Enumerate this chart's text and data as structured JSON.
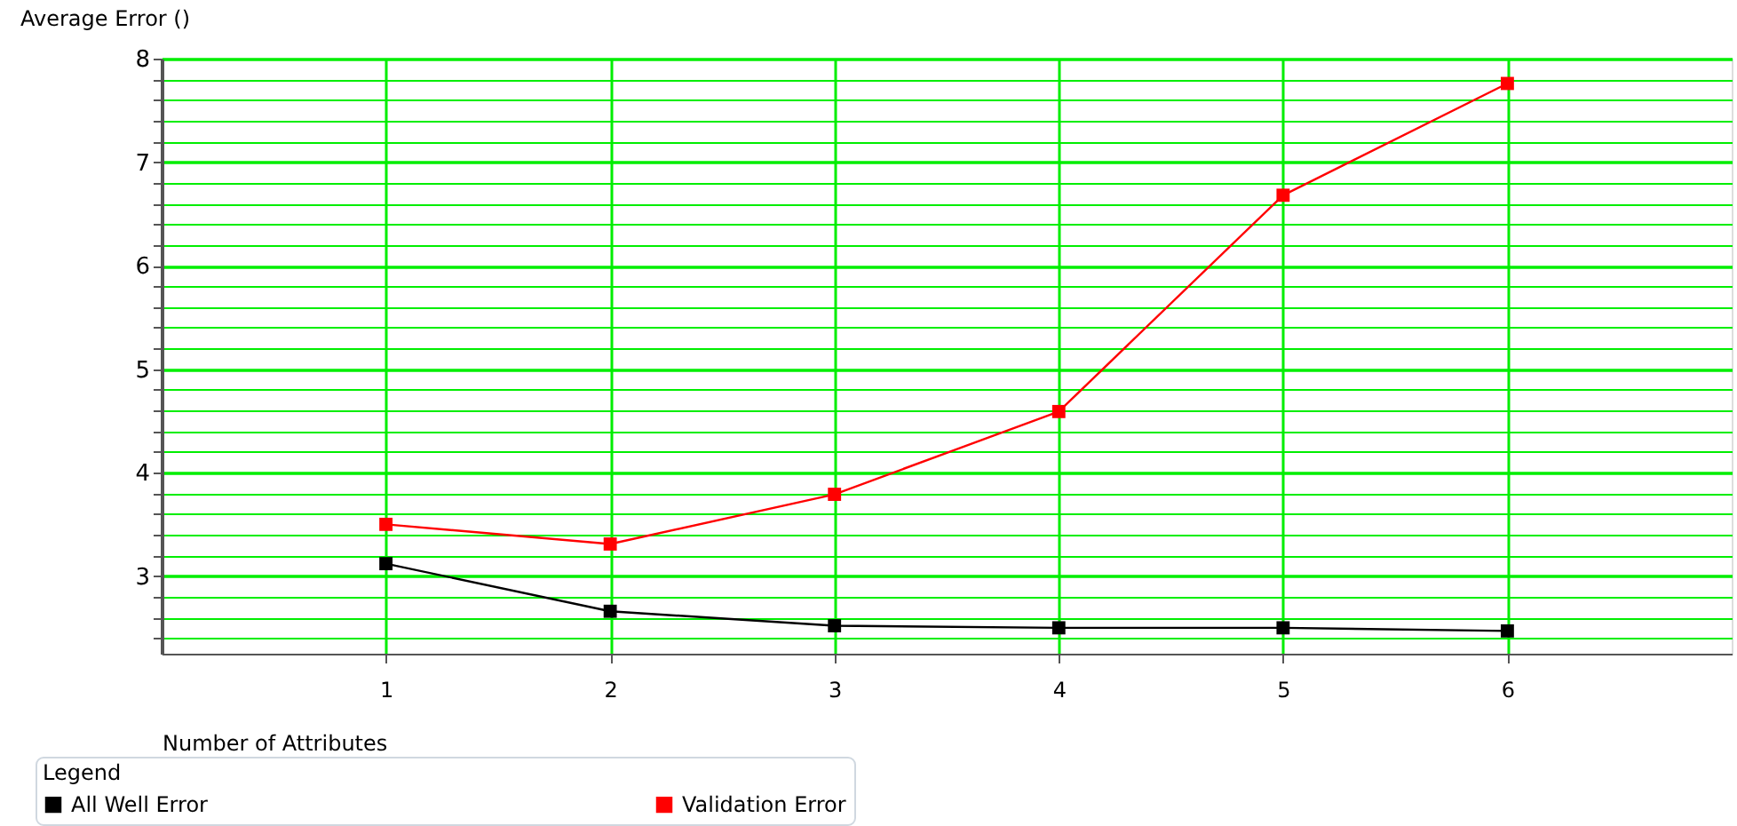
{
  "chart_data": {
    "type": "line",
    "xlabel": "Number of Attributes",
    "ylabel": "Average Error ()",
    "legend_title": "Legend",
    "x": [
      1,
      2,
      3,
      4,
      5,
      6
    ],
    "series": [
      {
        "name": "All Well Error",
        "color": "#000000",
        "values": [
          3.12,
          2.66,
          2.52,
          2.5,
          2.5,
          2.47
        ]
      },
      {
        "name": "Validation Error",
        "color": "#ff0000",
        "values": [
          3.5,
          3.31,
          3.79,
          4.59,
          6.68,
          7.76
        ]
      }
    ],
    "xlim": [
      0,
      7
    ],
    "xticks": [
      1,
      2,
      3,
      4,
      5,
      6
    ],
    "ylim": [
      2.25,
      8
    ],
    "yticks": [
      {
        "value": 2.4,
        "label": null
      },
      {
        "value": 2.6,
        "label": null
      },
      {
        "value": 2.8,
        "label": null
      },
      3,
      {
        "value": 3.2,
        "label": null
      },
      {
        "value": 3.4,
        "label": null
      },
      {
        "value": 3.6,
        "label": null
      },
      {
        "value": 3.8,
        "label": null
      },
      4,
      {
        "value": 4.2,
        "label": null
      },
      {
        "value": 4.4,
        "label": null
      },
      {
        "value": 4.6,
        "label": null
      },
      {
        "value": 4.8,
        "label": null
      },
      5,
      {
        "value": 5.2,
        "label": null
      },
      {
        "value": 5.4,
        "label": null
      },
      {
        "value": 5.6,
        "label": null
      },
      {
        "value": 5.8,
        "label": null
      },
      6,
      {
        "value": 6.2,
        "label": null
      },
      {
        "value": 6.4,
        "label": null
      },
      {
        "value": 6.6,
        "label": null
      },
      {
        "value": 6.8,
        "label": null
      },
      7,
      {
        "value": 7.2,
        "label": null
      },
      {
        "value": 7.4,
        "label": null
      },
      {
        "value": 7.6,
        "label": null
      },
      {
        "value": 7.8,
        "label": null
      },
      8
    ],
    "grid": true,
    "legend": "bottom",
    "marker": "square",
    "line_style": "solid"
  }
}
